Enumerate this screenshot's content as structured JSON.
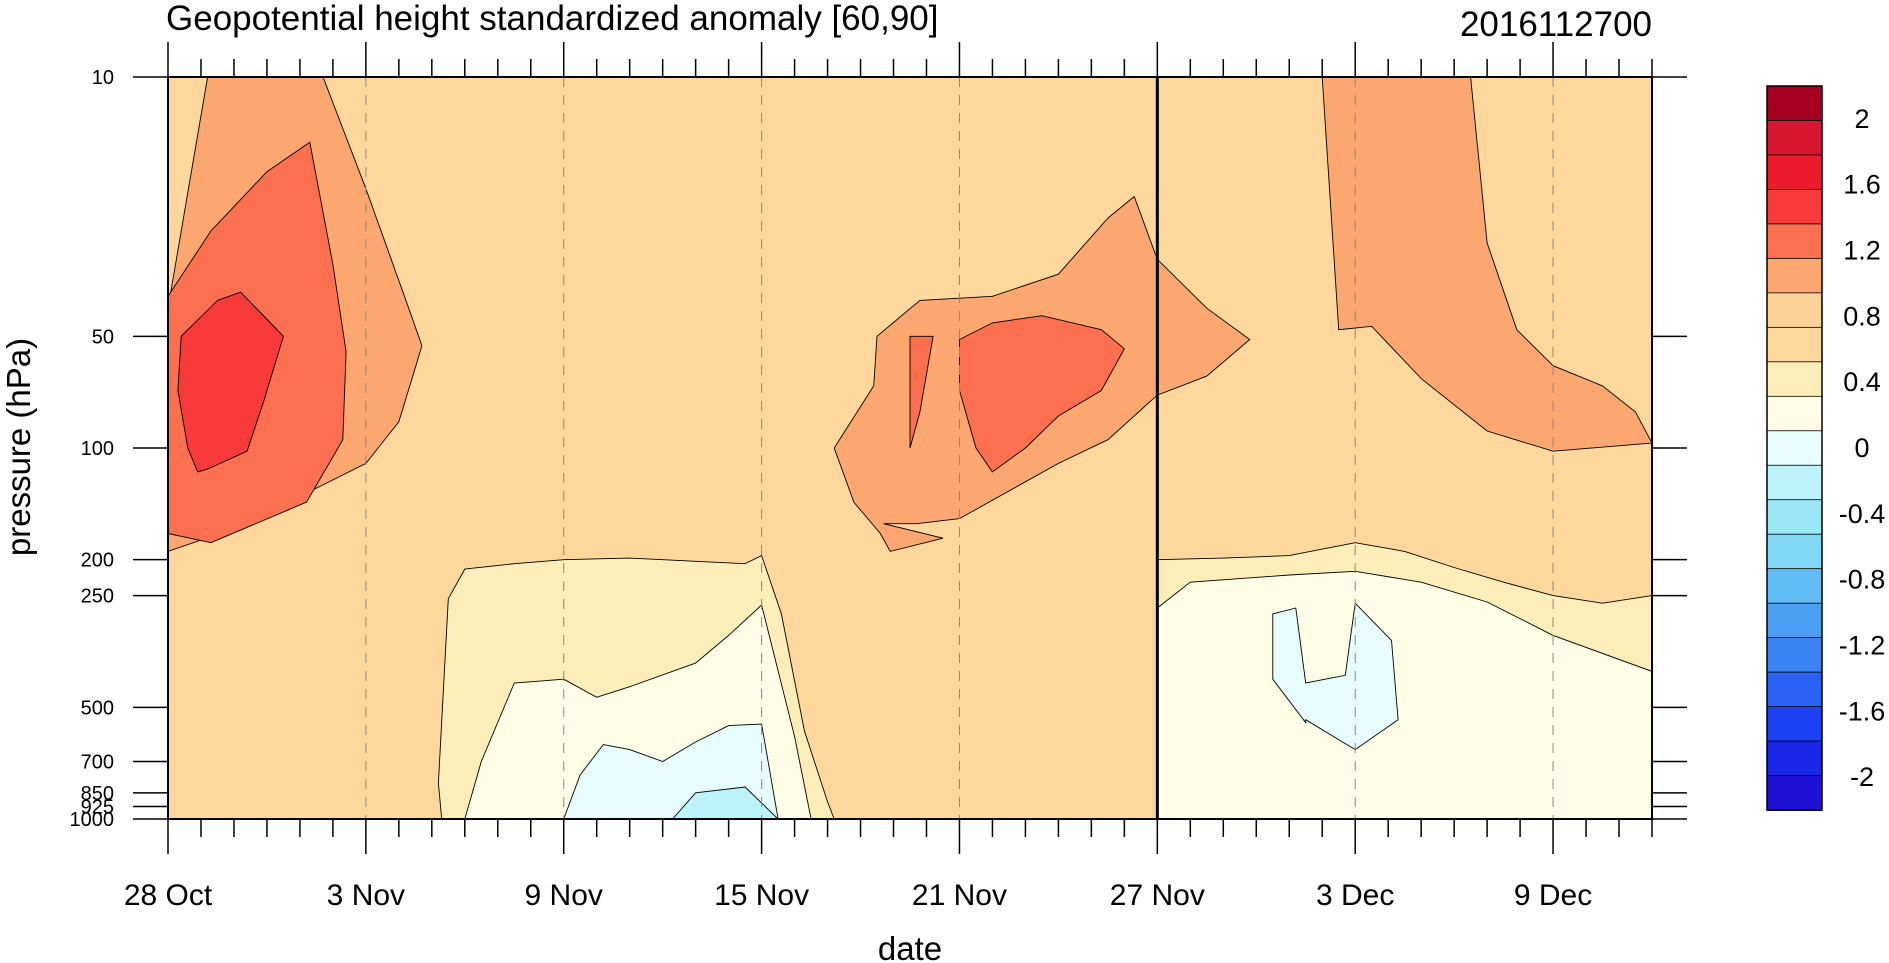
{
  "chart_data": {
    "type": "heatmap",
    "title": "Geopotential height standardized anomaly [60,90]",
    "subtitle": "2016112700",
    "xlabel": "date",
    "ylabel": "pressure (hPa)",
    "yscale": "log",
    "yreversed": true,
    "xlim": [
      "2016-10-28",
      "2016-12-12"
    ],
    "ylim": [
      1000,
      10
    ],
    "x_ticks": [
      {
        "date": "2016-10-28",
        "label": "28 Oct"
      },
      {
        "date": "2016-11-03",
        "label": "3 Nov"
      },
      {
        "date": "2016-11-09",
        "label": "9 Nov"
      },
      {
        "date": "2016-11-15",
        "label": "15 Nov"
      },
      {
        "date": "2016-11-21",
        "label": "21 Nov"
      },
      {
        "date": "2016-11-27",
        "label": "27 Nov"
      },
      {
        "date": "2016-12-03",
        "label": "3 Dec"
      },
      {
        "date": "2016-12-09",
        "label": "9 Dec"
      }
    ],
    "y_levels": [
      10,
      50,
      100,
      200,
      250,
      500,
      700,
      850,
      925,
      1000
    ],
    "y_tick_labels": [
      "10",
      "50",
      "100",
      "200",
      "250",
      "500",
      "700",
      "850",
      "925",
      "1000"
    ],
    "reference_line_date": "2016-11-27",
    "grid": "dashed vertical lines at date ticks",
    "colorbar": {
      "position": "right",
      "levels": [
        -2.2,
        -2,
        -1.8,
        -1.6,
        -1.4,
        -1.2,
        -1,
        -0.8,
        -0.6,
        -0.4,
        -0.2,
        0,
        0.2,
        0.4,
        0.6,
        0.8,
        1,
        1.2,
        1.4,
        1.6,
        1.8,
        2,
        2.2
      ],
      "tick_values": [
        2,
        1.6,
        1.2,
        0.8,
        0.4,
        0,
        -0.4,
        -0.8,
        -1.2,
        -1.6,
        -2
      ],
      "tick_labels": [
        "2",
        "1.6",
        "1.2",
        "0.8",
        "0.4",
        "0",
        "-0.4",
        "-0.8",
        "-1.2",
        "-1.6",
        "-2"
      ],
      "colors_top_to_bottom": [
        "#a50021",
        "#d7172f",
        "#ed1c2c",
        "#f93a3a",
        "#fc7050",
        "#fca76f",
        "#fcd297",
        "#fdd79b",
        "#fdedb9",
        "#fffde6",
        "#e6fcfd",
        "#bdf3fb",
        "#9be7f6",
        "#80d7f6",
        "#63bdf5",
        "#4a9ff5",
        "#3983f4",
        "#2962f4",
        "#1c40f3",
        "#1b27e8",
        "#1e10d4"
      ]
    },
    "contour_regions": [
      {
        "level": "0.8 to 1.2",
        "color": "#fca76f",
        "points": [
          [
            "2016-10-28",
            42
          ],
          [
            "2016-10-29.2",
            10
          ],
          [
            "2016-11-01.7",
            10
          ],
          [
            "2016-11-03",
            20
          ],
          [
            "2016-11-04.3",
            42
          ],
          [
            "2016-11-04.7",
            53
          ],
          [
            "2016-11-04.4",
            65
          ],
          [
            "2016-11-04",
            85
          ],
          [
            "2016-11-03",
            110
          ],
          [
            "2016-11-01",
            135
          ],
          [
            "2016-10-30",
            165
          ],
          [
            "2016-10-28",
            190
          ]
        ]
      },
      {
        "level": "1.2 to 1.6",
        "color": "#fc7050",
        "points": [
          [
            "2016-10-28",
            39
          ],
          [
            "2016-10-29.3",
            26
          ],
          [
            "2016-10-31",
            18
          ],
          [
            "2016-11-01.3",
            15
          ],
          [
            "2016-11-02",
            32
          ],
          [
            "2016-11-02.4",
            55
          ],
          [
            "2016-11-02.3",
            95
          ],
          [
            "2016-11-01.2",
            140
          ],
          [
            "2016-10-29.3",
            180
          ],
          [
            "2016-10-28",
            170
          ]
        ]
      },
      {
        "level": "1.6 to 2.0",
        "color": "#f93a3a",
        "points": [
          [
            "2016-10-28.4",
            50
          ],
          [
            "2016-10-29.5",
            40
          ],
          [
            "2016-10-30.2",
            38
          ],
          [
            "2016-10-31.5",
            50
          ],
          [
            "2016-10-30.9",
            75
          ],
          [
            "2016-10-30.4",
            102
          ],
          [
            "2016-10-29.2",
            114
          ],
          [
            "2016-10-28.9",
            116
          ],
          [
            "2016-10-28.6",
            100
          ],
          [
            "2016-10-28.3",
            70
          ]
        ]
      },
      {
        "level": "0.8 to 1.2",
        "color": "#fca76f",
        "points": [
          [
            "2016-11-18.4",
            68
          ],
          [
            "2016-11-18.5",
            50
          ],
          [
            "2016-11-19.8",
            40
          ],
          [
            "2016-11-22",
            39
          ],
          [
            "2016-11-24",
            34
          ],
          [
            "2016-11-25.5",
            24
          ],
          [
            "2016-11-26.3",
            21
          ],
          [
            "2016-11-27",
            31
          ],
          [
            "2016-11-28.5",
            42
          ],
          [
            "2016-11-29.8",
            51
          ],
          [
            "2016-11-28.5",
            64
          ],
          [
            "2016-11-27",
            72
          ],
          [
            "2016-11-25.5",
            95
          ],
          [
            "2016-11-24",
            110
          ],
          [
            "2016-11-21",
            155
          ],
          [
            "2016-11-19.7",
            160
          ],
          [
            "2016-11-18.7",
            160
          ],
          [
            "2016-11-20.5",
            175
          ],
          [
            "2016-11-18.9",
            190
          ],
          [
            "2016-11-18.6",
            170
          ],
          [
            "2016-11-17.8",
            140
          ],
          [
            "2016-11-17.2",
            100
          ]
        ]
      },
      {
        "level": "1.2 to 1.6",
        "color": "#fc7050",
        "points": [
          [
            "2016-11-19.5",
            50
          ],
          [
            "2016-11-20.2",
            50
          ],
          [
            "2016-11-19.8",
            80
          ],
          [
            "2016-11-19.5",
            100
          ]
        ]
      },
      {
        "level": "1.2 to 1.6",
        "color": "#fc7050",
        "points": [
          [
            "2016-11-21",
            51
          ],
          [
            "2016-11-22",
            46
          ],
          [
            "2016-11-23.5",
            44
          ],
          [
            "2016-11-25.3",
            48
          ],
          [
            "2016-11-26",
            54
          ],
          [
            "2016-11-25.3",
            70
          ],
          [
            "2016-11-24",
            82
          ],
          [
            "2016-11-23",
            100
          ],
          [
            "2016-11-22",
            116
          ],
          [
            "2016-11-21.5",
            100
          ],
          [
            "2016-11-21",
            70
          ]
        ]
      },
      {
        "level": "0.8 to 1.2",
        "color": "#fca76f",
        "points": [
          [
            "2016-12-02",
            10
          ],
          [
            "2016-12-06.5",
            10
          ],
          [
            "2016-12-07",
            28
          ],
          [
            "2016-12-07.9",
            48
          ],
          [
            "2016-12-09",
            60
          ],
          [
            "2016-12-10.5",
            68
          ],
          [
            "2016-12-11.5",
            80
          ],
          [
            "2016-12-12",
            97
          ],
          [
            "2016-12-09",
            102
          ],
          [
            "2016-12-07",
            90
          ],
          [
            "2016-12-05",
            65
          ],
          [
            "2016-12-03.5",
            47
          ],
          [
            "2016-12-02.5",
            48
          ]
        ]
      },
      {
        "level": "0.0 to 0.4",
        "color": "#fdedb9",
        "points": [
          [
            "2016-11-05.5",
            255
          ],
          [
            "2016-11-06",
            212
          ],
          [
            "2016-11-07.5",
            205
          ],
          [
            "2016-11-09",
            200
          ],
          [
            "2016-11-11",
            198
          ],
          [
            "2016-11-13",
            202
          ],
          [
            "2016-11-14.5",
            205
          ],
          [
            "2016-11-15",
            195
          ],
          [
            "2016-11-15.6",
            280
          ],
          [
            "2016-11-16.3",
            580
          ],
          [
            "2016-11-17",
            900
          ],
          [
            "2016-11-17.2",
            1000
          ],
          [
            "2016-11-05.3",
            1000
          ],
          [
            "2016-11-05.2",
            800
          ]
        ]
      },
      {
        "level": "0.0 to 0.4",
        "color": "#fdedb9",
        "points": [
          [
            "2016-11-27",
            200
          ],
          [
            "2016-11-29",
            198
          ],
          [
            "2016-12-01",
            195
          ],
          [
            "2016-12-03",
            180
          ],
          [
            "2016-12-04.5",
            190
          ],
          [
            "2016-12-06",
            210
          ],
          [
            "2016-12-07.5",
            230
          ],
          [
            "2016-12-09",
            250
          ],
          [
            "2016-12-10.5",
            262
          ],
          [
            "2016-12-12",
            250
          ],
          [
            "2016-12-12",
            1000
          ],
          [
            "2016-11-27",
            1000
          ]
        ]
      },
      {
        "level": "-0.4 to 0.0",
        "color": "#fffde6",
        "points": [
          [
            "2016-11-09",
            420
          ],
          [
            "2016-11-10",
            470
          ],
          [
            "2016-11-11",
            440
          ],
          [
            "2016-11-13",
            380
          ],
          [
            "2016-11-14",
            320
          ],
          [
            "2016-11-15",
            265
          ],
          [
            "2016-11-16",
            600
          ],
          [
            "2016-11-16.5",
            1000
          ],
          [
            "2016-11-06",
            1000
          ],
          [
            "2016-11-06.5",
            700
          ],
          [
            "2016-11-07.5",
            430
          ]
        ]
      },
      {
        "level": "-0.4 to 0.0",
        "color": "#fffde6",
        "points": [
          [
            "2016-11-27",
            270
          ],
          [
            "2016-11-28",
            230
          ],
          [
            "2016-12-01",
            220
          ],
          [
            "2016-12-03",
            215
          ],
          [
            "2016-12-05",
            230
          ],
          [
            "2016-12-07",
            260
          ],
          [
            "2016-12-09",
            320
          ],
          [
            "2016-12-12",
            400
          ],
          [
            "2016-12-12",
            1000
          ],
          [
            "2016-11-27",
            1000
          ]
        ]
      },
      {
        "level": "-0.8 to -0.4",
        "color": "#e6fcfd",
        "points": [
          [
            "2016-11-10.2",
            630
          ],
          [
            "2016-11-11",
            650
          ],
          [
            "2016-11-12",
            700
          ],
          [
            "2016-11-13",
            620
          ],
          [
            "2016-11-14",
            560
          ],
          [
            "2016-11-15",
            555
          ],
          [
            "2016-11-15.5",
            1000
          ],
          [
            "2016-11-09",
            1000
          ],
          [
            "2016-11-09.5",
            760
          ]
        ]
      },
      {
        "level": "-0.8 to -0.4",
        "color": "#e6fcfd",
        "points": [
          [
            "2016-11-30.5",
            280
          ],
          [
            "2016-11-31.2",
            270
          ],
          [
            "2016-12-01.5",
            430
          ],
          [
            "2016-12-02.7",
            410
          ],
          [
            "2016-12-03",
            262
          ],
          [
            "2016-12-04.1",
            330
          ],
          [
            "2016-12-04.3",
            540
          ],
          [
            "2016-12-03",
            650
          ],
          [
            "2016-12-01.5",
            540
          ],
          [
            "2016-11-31.5",
            550
          ],
          [
            "2016-11-30.5",
            420
          ]
        ]
      },
      {
        "level": "-1.2 to -0.8",
        "color": "#bdf3fb",
        "points": [
          [
            "2016-11-13",
            850
          ],
          [
            "2016-11-14.5",
            820
          ],
          [
            "2016-11-15.5",
            1000
          ],
          [
            "2016-11-12.3",
            1000
          ]
        ]
      }
    ]
  }
}
